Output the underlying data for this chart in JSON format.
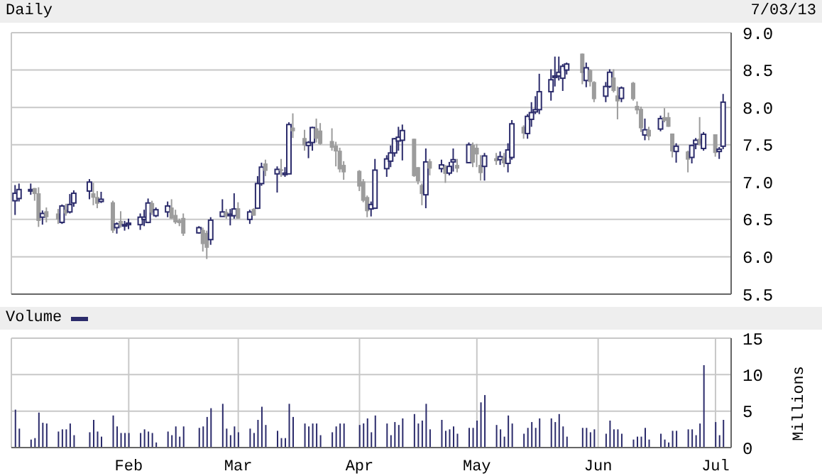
{
  "chart_data": [
    {
      "type": "candlestick",
      "title": "Daily",
      "annotations": [
        "7/03/13"
      ],
      "x": [
        "--01-03",
        "--01-04",
        "--01-07",
        "--01-08",
        "--01-09",
        "--01-10",
        "--01-11",
        "--01-14",
        "--01-15",
        "--01-16",
        "--01-17",
        "--01-18",
        "--01-22",
        "--01-23",
        "--01-24",
        "--01-25",
        "--01-28",
        "--01-29",
        "--01-30",
        "--01-31",
        "--02-01",
        "--02-04",
        "--02-05",
        "--02-06",
        "--02-07",
        "--02-08",
        "--02-11",
        "--02-12",
        "--02-13",
        "--02-14",
        "--02-15",
        "--02-19",
        "--02-20",
        "--02-21",
        "--02-22",
        "--02-25",
        "--02-26",
        "--02-27",
        "--02-28",
        "--03-01",
        "--03-04",
        "--03-05",
        "--03-06",
        "--03-07",
        "--03-08",
        "--03-11",
        "--03-12",
        "--03-13",
        "--03-14",
        "--03-15",
        "--03-18",
        "--03-19",
        "--03-20",
        "--03-21",
        "--03-22",
        "--03-25",
        "--03-26",
        "--03-27",
        "--03-28",
        "--04-01",
        "--04-02",
        "--04-03",
        "--04-04",
        "--04-05",
        "--04-08",
        "--04-09",
        "--04-10",
        "--04-11",
        "--04-12",
        "--04-15",
        "--04-16",
        "--04-17",
        "--04-18",
        "--04-19",
        "--04-22",
        "--04-23",
        "--04-24",
        "--04-25",
        "--04-26",
        "--04-29",
        "--04-30",
        "--05-01",
        "--05-02",
        "--05-03",
        "--05-06",
        "--05-07",
        "--05-08",
        "--05-09",
        "--05-10",
        "--05-13",
        "--05-14",
        "--05-15",
        "--05-16",
        "--05-17",
        "--05-20",
        "--05-21",
        "--05-22",
        "--05-23",
        "--05-24",
        "--05-28",
        "--05-29",
        "--05-30",
        "--05-31",
        "--06-03",
        "--06-04",
        "--06-05",
        "--06-06",
        "--06-07",
        "--06-10",
        "--06-11",
        "--06-12",
        "--06-13",
        "--06-14",
        "--06-17",
        "--06-18",
        "--06-19",
        "--06-20",
        "--06-21",
        "--06-24",
        "--06-25",
        "--06-26",
        "--06-27",
        "--06-28",
        "--07-01",
        "--07-02",
        "--07-03"
      ],
      "ohlc": [
        [
          6.75,
          6.96,
          6.56,
          6.85
        ],
        [
          6.78,
          6.98,
          6.74,
          6.9
        ],
        [
          6.88,
          6.98,
          6.83,
          6.9
        ],
        [
          6.92,
          6.92,
          6.75,
          6.84
        ],
        [
          6.85,
          6.93,
          6.4,
          6.48
        ],
        [
          6.53,
          6.62,
          6.43,
          6.58
        ],
        [
          6.61,
          6.66,
          6.46,
          6.53
        ],
        [
          6.58,
          6.64,
          6.44,
          6.5
        ],
        [
          6.46,
          6.7,
          6.44,
          6.68
        ],
        [
          6.63,
          6.71,
          6.55,
          6.58
        ],
        [
          6.6,
          6.84,
          6.58,
          6.7
        ],
        [
          6.72,
          6.89,
          6.67,
          6.85
        ],
        [
          6.88,
          7.04,
          6.77,
          7.0
        ],
        [
          6.85,
          6.99,
          6.69,
          6.79
        ],
        [
          6.8,
          6.88,
          6.65,
          6.71
        ],
        [
          6.74,
          6.87,
          6.72,
          6.77
        ],
        [
          6.73,
          6.75,
          6.32,
          6.35
        ],
        [
          6.39,
          6.46,
          6.31,
          6.44
        ],
        [
          6.48,
          6.61,
          6.39,
          6.42
        ],
        [
          6.42,
          6.48,
          6.35,
          6.43
        ],
        [
          6.43,
          6.51,
          6.37,
          6.45
        ],
        [
          6.43,
          6.58,
          6.36,
          6.53
        ],
        [
          6.5,
          6.63,
          6.41,
          6.53
        ],
        [
          6.46,
          6.78,
          6.45,
          6.72
        ],
        [
          6.72,
          6.75,
          6.56,
          6.59
        ],
        [
          6.55,
          6.66,
          6.53,
          6.63
        ],
        [
          6.6,
          6.74,
          6.53,
          6.68
        ],
        [
          6.66,
          6.77,
          6.51,
          6.51
        ],
        [
          6.56,
          6.63,
          6.44,
          6.46
        ],
        [
          6.49,
          6.51,
          6.41,
          6.45
        ],
        [
          6.52,
          6.58,
          6.28,
          6.31
        ],
        [
          6.32,
          6.41,
          6.31,
          6.39
        ],
        [
          6.36,
          6.39,
          6.07,
          6.17
        ],
        [
          6.32,
          6.35,
          5.97,
          6.12
        ],
        [
          6.23,
          6.53,
          6.16,
          6.49
        ],
        [
          6.54,
          6.77,
          6.54,
          6.6
        ],
        [
          6.6,
          6.64,
          6.51,
          6.54
        ],
        [
          6.55,
          6.64,
          6.42,
          6.57
        ],
        [
          6.55,
          6.85,
          6.51,
          6.64
        ],
        [
          6.65,
          6.73,
          6.51,
          6.51
        ],
        [
          6.5,
          6.63,
          6.44,
          6.6
        ],
        [
          6.64,
          6.65,
          6.55,
          6.55
        ],
        [
          6.65,
          7.08,
          6.64,
          6.98
        ],
        [
          6.98,
          7.26,
          6.95,
          7.2
        ],
        [
          7.25,
          7.3,
          7.08,
          7.15
        ],
        [
          7.11,
          7.21,
          6.86,
          7.17
        ],
        [
          7.17,
          7.31,
          7.07,
          7.15
        ],
        [
          7.1,
          7.2,
          7.07,
          7.12
        ],
        [
          7.11,
          7.8,
          7.11,
          7.77
        ],
        [
          7.73,
          7.92,
          7.59,
          7.68
        ],
        [
          7.59,
          7.7,
          7.42,
          7.49
        ],
        [
          7.49,
          7.55,
          7.32,
          7.53
        ],
        [
          7.53,
          7.74,
          7.42,
          7.73
        ],
        [
          7.72,
          7.85,
          7.53,
          7.58
        ],
        [
          7.69,
          7.79,
          7.5,
          7.51
        ],
        [
          7.55,
          7.72,
          7.42,
          7.46
        ],
        [
          7.49,
          7.54,
          7.21,
          7.41
        ],
        [
          7.42,
          7.46,
          7.13,
          7.17
        ],
        [
          7.23,
          7.28,
          7.03,
          7.13
        ],
        [
          7.15,
          7.16,
          6.88,
          6.94
        ],
        [
          7.01,
          7.04,
          6.73,
          6.75
        ],
        [
          6.8,
          6.82,
          6.53,
          6.61
        ],
        [
          6.64,
          6.74,
          6.54,
          6.7
        ],
        [
          6.65,
          7.31,
          6.64,
          7.16
        ],
        [
          7.18,
          7.36,
          7.07,
          7.31
        ],
        [
          7.28,
          7.49,
          7.2,
          7.39
        ],
        [
          7.39,
          7.59,
          7.34,
          7.58
        ],
        [
          7.55,
          7.74,
          7.42,
          7.6
        ],
        [
          7.56,
          7.77,
          7.29,
          7.69
        ],
        [
          7.58,
          7.58,
          7.07,
          7.08
        ],
        [
          7.2,
          7.2,
          6.97,
          7.01
        ],
        [
          6.96,
          6.98,
          6.69,
          6.84
        ],
        [
          6.83,
          7.45,
          6.65,
          7.27
        ],
        [
          7.28,
          7.31,
          7.09,
          7.18
        ],
        [
          7.18,
          7.3,
          7.13,
          7.23
        ],
        [
          7.21,
          7.23,
          6.99,
          7.11
        ],
        [
          7.12,
          7.27,
          7.09,
          7.21
        ],
        [
          7.27,
          7.45,
          7.14,
          7.3
        ],
        [
          7.23,
          7.31,
          7.13,
          7.18
        ],
        [
          7.26,
          7.53,
          7.25,
          7.5
        ],
        [
          7.5,
          7.53,
          7.2,
          7.26
        ],
        [
          7.46,
          7.51,
          7.2,
          7.37
        ],
        [
          7.23,
          7.36,
          7.02,
          7.12
        ],
        [
          7.21,
          7.39,
          7.02,
          7.35
        ],
        [
          7.32,
          7.39,
          7.23,
          7.28
        ],
        [
          7.3,
          7.41,
          7.23,
          7.34
        ],
        [
          7.33,
          7.39,
          7.2,
          7.25
        ],
        [
          7.25,
          7.52,
          7.13,
          7.43
        ],
        [
          7.33,
          7.83,
          7.3,
          7.78
        ],
        [
          7.74,
          7.76,
          7.58,
          7.65
        ],
        [
          7.65,
          7.91,
          7.58,
          7.88
        ],
        [
          7.84,
          8.07,
          7.74,
          7.93
        ],
        [
          7.94,
          8.15,
          7.91,
          7.97
        ],
        [
          7.97,
          8.45,
          7.91,
          8.21
        ],
        [
          8.21,
          8.51,
          8.09,
          8.37
        ],
        [
          8.4,
          8.68,
          8.28,
          8.42
        ],
        [
          8.42,
          8.68,
          8.36,
          8.47
        ],
        [
          8.39,
          8.58,
          8.22,
          8.55
        ],
        [
          8.5,
          8.6,
          8.44,
          8.58
        ],
        [
          8.72,
          8.72,
          8.31,
          8.46
        ],
        [
          8.36,
          8.6,
          8.27,
          8.53
        ],
        [
          8.5,
          8.51,
          8.28,
          8.34
        ],
        [
          8.34,
          8.35,
          8.07,
          8.11
        ],
        [
          8.15,
          8.34,
          8.07,
          8.28
        ],
        [
          8.28,
          8.51,
          8.26,
          8.47
        ],
        [
          8.4,
          8.51,
          8.2,
          8.22
        ],
        [
          8.16,
          8.28,
          7.84,
          8.08
        ],
        [
          8.12,
          8.28,
          8.07,
          8.26
        ],
        [
          8.33,
          8.34,
          8.09,
          8.11
        ],
        [
          8.02,
          8.08,
          7.91,
          7.96
        ],
        [
          7.98,
          8.01,
          7.67,
          7.72
        ],
        [
          7.63,
          7.85,
          7.56,
          7.7
        ],
        [
          7.7,
          7.74,
          7.56,
          7.61
        ],
        [
          7.71,
          7.89,
          7.68,
          7.85
        ],
        [
          7.87,
          7.99,
          7.8,
          7.82
        ],
        [
          7.87,
          7.93,
          7.74,
          7.74
        ],
        [
          7.65,
          7.65,
          7.33,
          7.41
        ],
        [
          7.41,
          7.52,
          7.26,
          7.48
        ],
        [
          7.41,
          7.42,
          7.13,
          7.3
        ],
        [
          7.33,
          7.5,
          7.25,
          7.49
        ],
        [
          7.51,
          7.59,
          7.44,
          7.56
        ],
        [
          7.58,
          7.87,
          7.49,
          7.51
        ],
        [
          7.45,
          7.67,
          7.42,
          7.64
        ],
        [
          7.64,
          7.64,
          7.34,
          7.39
        ],
        [
          7.41,
          7.47,
          7.31,
          7.44
        ],
        [
          7.48,
          8.18,
          7.44,
          8.07
        ]
      ],
      "colors": [
        "#2b2b6b",
        "#2b2b6b",
        "#2b2b6b",
        "#9c9c9c",
        "#9c9c9c",
        "#2b2b6b",
        "#9c9c9c",
        "#9c9c9c",
        "#2b2b6b",
        "#9c9c9c",
        "#2b2b6b",
        "#2b2b6b",
        "#2b2b6b",
        "#9c9c9c",
        "#9c9c9c",
        "#2b2b6b",
        "#9c9c9c",
        "#2b2b6b",
        "#9c9c9c",
        "#2b2b6b",
        "#2b2b6b",
        "#2b2b6b",
        "#2b2b6b",
        "#2b2b6b",
        "#9c9c9c",
        "#2b2b6b",
        "#2b2b6b",
        "#9c9c9c",
        "#9c9c9c",
        "#9c9c9c",
        "#9c9c9c",
        "#2b2b6b",
        "#9c9c9c",
        "#9c9c9c",
        "#2b2b6b",
        "#2b2b6b",
        "#9c9c9c",
        "#2b2b6b",
        "#2b2b6b",
        "#9c9c9c",
        "#2b2b6b",
        "#9c9c9c",
        "#2b2b6b",
        "#2b2b6b",
        "#9c9c9c",
        "#2b2b6b",
        "#9c9c9c",
        "#2b2b6b",
        "#2b2b6b",
        "#9c9c9c",
        "#9c9c9c",
        "#2b2b6b",
        "#2b2b6b",
        "#9c9c9c",
        "#9c9c9c",
        "#9c9c9c",
        "#9c9c9c",
        "#9c9c9c",
        "#9c9c9c",
        "#9c9c9c",
        "#9c9c9c",
        "#9c9c9c",
        "#2b2b6b",
        "#2b2b6b",
        "#2b2b6b",
        "#2b2b6b",
        "#2b2b6b",
        "#2b2b6b",
        "#2b2b6b",
        "#9c9c9c",
        "#9c9c9c",
        "#9c9c9c",
        "#2b2b6b",
        "#9c9c9c",
        "#2b2b6b",
        "#9c9c9c",
        "#2b2b6b",
        "#2b2b6b",
        "#9c9c9c",
        "#2b2b6b",
        "#9c9c9c",
        "#9c9c9c",
        "#9c9c9c",
        "#2b2b6b",
        "#9c9c9c",
        "#2b2b6b",
        "#9c9c9c",
        "#2b2b6b",
        "#2b2b6b",
        "#9c9c9c",
        "#2b2b6b",
        "#2b2b6b",
        "#2b2b6b",
        "#2b2b6b",
        "#2b2b6b",
        "#2b2b6b",
        "#2b2b6b",
        "#2b2b6b",
        "#2b2b6b",
        "#9c9c9c",
        "#2b2b6b",
        "#9c9c9c",
        "#9c9c9c",
        "#2b2b6b",
        "#2b2b6b",
        "#9c9c9c",
        "#9c9c9c",
        "#2b2b6b",
        "#9c9c9c",
        "#9c9c9c",
        "#9c9c9c",
        "#2b2b6b",
        "#9c9c9c",
        "#2b2b6b",
        "#9c9c9c",
        "#9c9c9c",
        "#9c9c9c",
        "#2b2b6b",
        "#9c9c9c",
        "#2b2b6b",
        "#2b2b6b",
        "#9c9c9c",
        "#2b2b6b",
        "#9c9c9c",
        "#2b2b6b",
        "#2b2b6b"
      ],
      "xlim": [
        "--01-02",
        "--07-05"
      ],
      "xticks": [
        {
          "value": "--02-01",
          "label": null
        },
        {
          "value": "--03-01",
          "label": null
        },
        {
          "value": "--04-01",
          "label": null
        },
        {
          "value": "--05-01",
          "label": null
        },
        {
          "value": "--06-01",
          "label": null
        },
        {
          "value": "--07-01",
          "label": null
        }
      ],
      "ylim": [
        5.5,
        9
      ],
      "yticks": [
        {
          "value": 5.5,
          "label": "5.5"
        },
        {
          "value": 6,
          "label": "6.0"
        },
        {
          "value": 6.5,
          "label": "6.5"
        },
        {
          "value": 7,
          "label": "7.0"
        },
        {
          "value": 7.5,
          "label": "7.5"
        },
        {
          "value": 8,
          "label": "8.0"
        },
        {
          "value": 8.5,
          "label": "8.5"
        },
        {
          "value": 9,
          "label": "9.0"
        }
      ],
      "grid": true,
      "tick_labels": "y"
    },
    {
      "type": "bar",
      "ylabel": "Millions",
      "legend": "top left",
      "x": [
        "--01-03",
        "--01-04",
        "--01-07",
        "--01-08",
        "--01-09",
        "--01-10",
        "--01-11",
        "--01-14",
        "--01-15",
        "--01-16",
        "--01-17",
        "--01-18",
        "--01-22",
        "--01-23",
        "--01-24",
        "--01-25",
        "--01-28",
        "--01-29",
        "--01-30",
        "--01-31",
        "--02-01",
        "--02-04",
        "--02-05",
        "--02-06",
        "--02-07",
        "--02-08",
        "--02-11",
        "--02-12",
        "--02-13",
        "--02-14",
        "--02-15",
        "--02-19",
        "--02-20",
        "--02-21",
        "--02-22",
        "--02-25",
        "--02-26",
        "--02-27",
        "--02-28",
        "--03-01",
        "--03-04",
        "--03-05",
        "--03-06",
        "--03-07",
        "--03-08",
        "--03-11",
        "--03-12",
        "--03-13",
        "--03-14",
        "--03-15",
        "--03-18",
        "--03-19",
        "--03-20",
        "--03-21",
        "--03-22",
        "--03-25",
        "--03-26",
        "--03-27",
        "--03-28",
        "--04-01",
        "--04-02",
        "--04-03",
        "--04-04",
        "--04-05",
        "--04-08",
        "--04-09",
        "--04-10",
        "--04-11",
        "--04-12",
        "--04-15",
        "--04-16",
        "--04-17",
        "--04-18",
        "--04-19",
        "--04-22",
        "--04-23",
        "--04-24",
        "--04-25",
        "--04-26",
        "--04-29",
        "--04-30",
        "--05-01",
        "--05-02",
        "--05-03",
        "--05-06",
        "--05-07",
        "--05-08",
        "--05-09",
        "--05-10",
        "--05-13",
        "--05-14",
        "--05-15",
        "--05-16",
        "--05-17",
        "--05-20",
        "--05-21",
        "--05-22",
        "--05-23",
        "--05-24",
        "--05-28",
        "--05-29",
        "--05-30",
        "--05-31",
        "--06-03",
        "--06-04",
        "--06-05",
        "--06-06",
        "--06-07",
        "--06-10",
        "--06-11",
        "--06-12",
        "--06-13",
        "--06-14",
        "--06-17",
        "--06-18",
        "--06-19",
        "--06-20",
        "--06-21",
        "--06-24",
        "--06-25",
        "--06-26",
        "--06-27",
        "--06-28",
        "--07-01",
        "--07-02",
        "--07-03"
      ],
      "series": [
        {
          "name": "Volume",
          "color": "#2b2b6b",
          "values": [
            5.2,
            2.6,
            1.1,
            1.3,
            4.8,
            3.4,
            3.3,
            2.2,
            2.5,
            2.5,
            3.3,
            1.7,
            2.1,
            3.8,
            2.2,
            1.5,
            4.4,
            2.9,
            2.0,
            2.0,
            2.0,
            2.0,
            2.5,
            2.2,
            2.0,
            0.7,
            2.2,
            1.7,
            2.9,
            1.5,
            2.9,
            2.7,
            2.9,
            4.2,
            5.4,
            6.0,
            2.6,
            1.7,
            2.9,
            2.1,
            2.6,
            2.0,
            3.8,
            5.6,
            3.1,
            2.3,
            1.3,
            1.3,
            6.0,
            4.2,
            3.3,
            2.9,
            3.3,
            3.3,
            1.7,
            2.1,
            2.9,
            3.3,
            3.3,
            3.1,
            3.3,
            4.0,
            2.1,
            4.4,
            3.3,
            1.7,
            3.5,
            3.1,
            4.0,
            4.6,
            3.3,
            3.7,
            6.0,
            2.5,
            3.8,
            2.3,
            2.5,
            2.9,
            1.9,
            2.7,
            2.7,
            3.7,
            6.2,
            7.2,
            3.1,
            2.5,
            1.5,
            4.4,
            3.3,
            1.9,
            2.7,
            3.5,
            2.7,
            4.0,
            4.0,
            3.5,
            4.6,
            2.9,
            1.5,
            2.7,
            2.7,
            2.1,
            2.5,
            1.9,
            3.7,
            2.5,
            2.5,
            1.9,
            1.1,
            1.5,
            1.5,
            2.7,
            1.1,
            1.9,
            1.1,
            0.7,
            2.3,
            2.3,
            2.5,
            2.5,
            1.7,
            3.3,
            11.3,
            3.5,
            1.7,
            3.8
          ]
        }
      ],
      "xlim": [
        "--01-02",
        "--07-05"
      ],
      "xticks": [
        {
          "value": "--02-01",
          "label": "Feb"
        },
        {
          "value": "--03-01",
          "label": "Mar"
        },
        {
          "value": "--04-01",
          "label": "Apr"
        },
        {
          "value": "--05-01",
          "label": "May"
        },
        {
          "value": "--06-01",
          "label": "Jun"
        },
        {
          "value": "--07-01",
          "label": "Jul"
        }
      ],
      "ylim": [
        0,
        15
      ],
      "yticks": [
        0,
        5,
        10,
        15
      ],
      "grid": true
    }
  ]
}
